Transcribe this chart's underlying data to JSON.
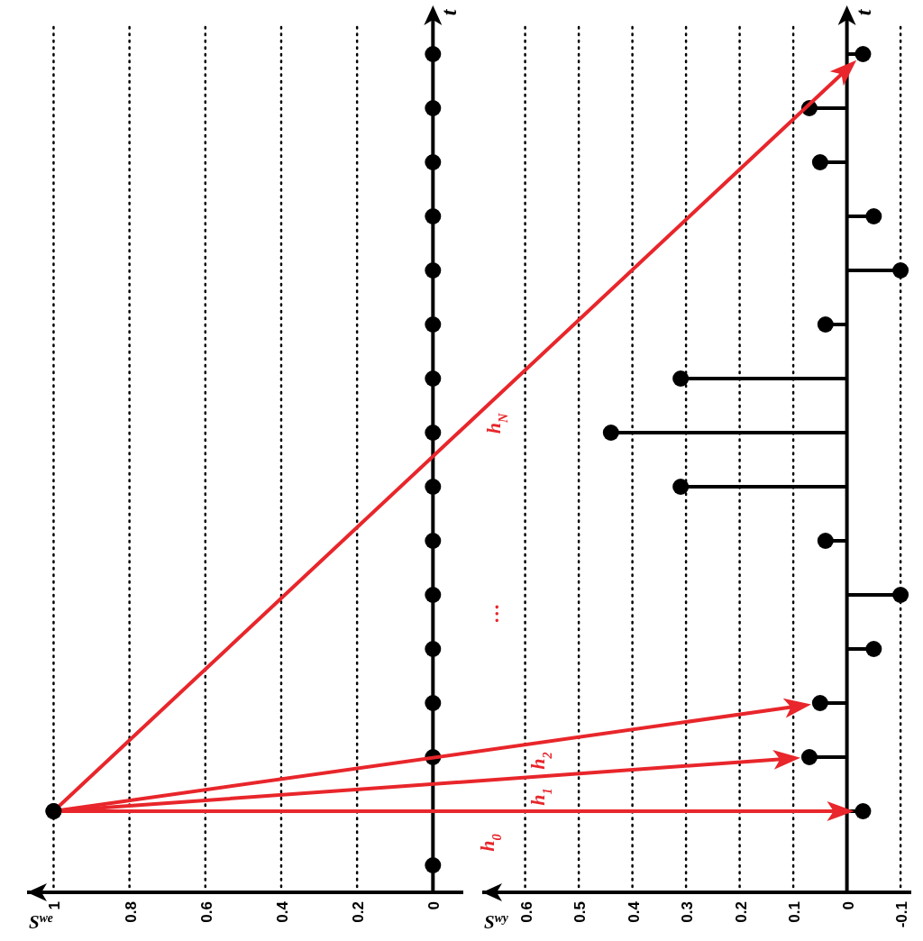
{
  "chart_data": [
    {
      "type": "lollipop",
      "orientation": "horizontal",
      "xlabel": "S$^{we}$",
      "ylabel": "t",
      "categories": [
        null,
        null,
        null,
        null,
        null,
        null,
        null,
        null,
        null,
        null,
        null,
        null,
        null,
        null,
        null,
        null
      ],
      "values": [
        0,
        0,
        0,
        0,
        0,
        0,
        0,
        0,
        0,
        0,
        0,
        0,
        0,
        0,
        1,
        0
      ],
      "color": "#000000",
      "marker": "circle",
      "xlim": [
        1.07,
        -0.08
      ],
      "xticks": [
        1,
        0.8,
        0.6,
        0.4,
        0.2,
        0
      ],
      "grid": "x",
      "tick_labels": "x",
      "annotations": [
        "h$_{0}$",
        "h$_{1}$",
        "h$_{2}$",
        "…",
        "h$_{N}$"
      ]
    },
    {
      "type": "lollipop",
      "orientation": "horizontal",
      "xlabel": "S$^{wy}$",
      "ylabel": "t",
      "categories": [
        null,
        null,
        null,
        null,
        null,
        null,
        null,
        null,
        null,
        null,
        null,
        null,
        null,
        null,
        null,
        null
      ],
      "values": [
        -0.03,
        0.07,
        0.05,
        -0.05,
        -0.1,
        0.04,
        0.31,
        0.44,
        0.31,
        0.04,
        -0.1,
        -0.05,
        0.05,
        0.07,
        -0.03,
        null
      ],
      "color": "#000000",
      "marker": "circle",
      "xlim": [
        0.68,
        -0.12
      ],
      "xticks": [
        0.6,
        0.5,
        0.4,
        0.3,
        0.2,
        0.1,
        0,
        -0.1
      ],
      "grid": "x",
      "tick_labels": "x"
    }
  ]
}
